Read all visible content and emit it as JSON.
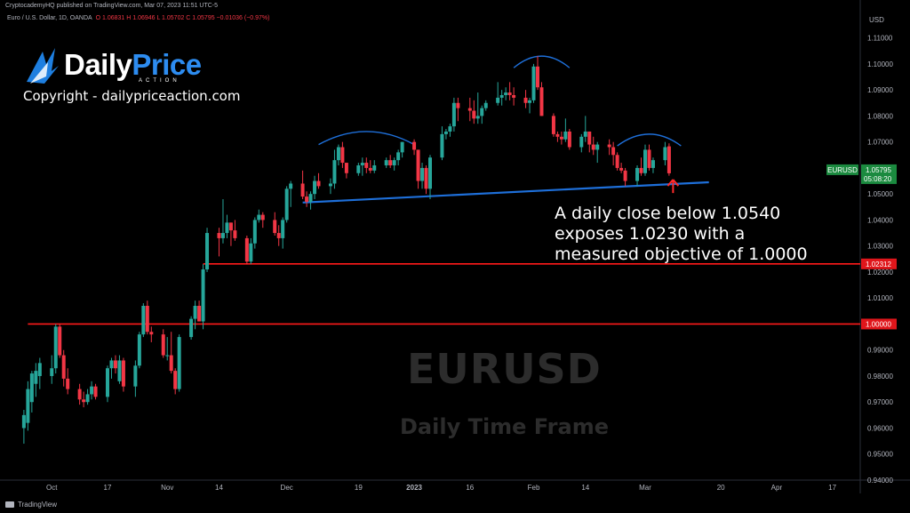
{
  "header": {
    "published": "CryptocademyHQ published on TradingView.com, Mar 07, 2023 11:51 UTC-5",
    "symbol_line": "Euro / U.S. Dollar, 1D, OANDA",
    "ohlc": "O 1.06831  H 1.06946  L 1.05702  C 1.05795  −0.01036 (−0.97%)"
  },
  "logo": {
    "part1": "Daily",
    "part2": "Price",
    "sub": "ACTION"
  },
  "copyright": "Copyright - dailypriceaction.com",
  "annotation": [
    "A daily close below 1.0540",
    "exposes 1.0230 with a",
    "measured objective of 1.0000"
  ],
  "watermark": {
    "symbol": "EURUSD",
    "timeframe": "Daily Time Frame"
  },
  "footer": "TradingView",
  "colors": {
    "up": "#26a69a",
    "down": "#f23645",
    "level": "#ff1a1a",
    "trendline": "#1e6fd9",
    "arc": "#1e6fd9",
    "marker": "#ff2a2a"
  },
  "chart_data": {
    "type": "candlestick",
    "currency": "USD",
    "ylim": [
      0.94,
      1.115
    ],
    "y_ticks": [
      "1.11000",
      "1.10000",
      "1.09000",
      "1.08000",
      "1.07000",
      "1.06000",
      "1.05000",
      "1.04000",
      "1.03000",
      "1.02000",
      "1.01000",
      "1.00000",
      "0.99000",
      "0.98000",
      "0.97000",
      "0.96000",
      "0.95000",
      "0.94000"
    ],
    "x_ticks": [
      {
        "label": "Oct",
        "date": "2022-10-03"
      },
      {
        "label": "17",
        "date": "2022-10-17"
      },
      {
        "label": "Nov",
        "date": "2022-11-01"
      },
      {
        "label": "14",
        "date": "2022-11-14"
      },
      {
        "label": "Dec",
        "date": "2022-12-01"
      },
      {
        "label": "19",
        "date": "2022-12-19"
      },
      {
        "label": "2023",
        "date": "2023-01-02"
      },
      {
        "label": "16",
        "date": "2023-01-16"
      },
      {
        "label": "Feb",
        "date": "2023-02-01"
      },
      {
        "label": "14",
        "date": "2023-02-14"
      },
      {
        "label": "Mar",
        "date": "2023-03-01"
      },
      {
        "label": "20",
        "date": "2023-03-20"
      },
      {
        "label": "Apr",
        "date": "2023-04-03"
      },
      {
        "label": "17",
        "date": "2023-04-17"
      }
    ],
    "price_labels": [
      {
        "name": "EURUSD",
        "value": "1.05795",
        "countdown": "05:08:20",
        "color": "#1b8a3f"
      },
      {
        "value": "1.02312",
        "color": "#e0161b"
      },
      {
        "value": "1.00000",
        "color": "#e0161b"
      }
    ],
    "horizontal_levels": [
      {
        "value": 1.02312,
        "from": "2022-11-10"
      },
      {
        "value": 1.0,
        "from": "2022-09-27"
      }
    ],
    "trendline": {
      "from": {
        "date": "2022-12-05",
        "value": 1.0467
      },
      "to": {
        "date": "2023-03-17",
        "value": 1.0545
      }
    },
    "arcs": [
      {
        "from": "2022-12-09",
        "to": "2023-01-02",
        "baseline": 1.069,
        "peak": 1.074
      },
      {
        "from": "2023-01-27",
        "to": "2023-02-10",
        "baseline": 1.0985,
        "peak": 1.103
      },
      {
        "from": "2023-02-22",
        "to": "2023-03-10",
        "baseline": 1.0685,
        "peak": 1.073
      }
    ],
    "marker": {
      "date": "2023-03-08",
      "value": 1.0555
    },
    "candles": [
      {
        "d": "2022-09-26",
        "o": 0.96,
        "h": 0.967,
        "l": 0.954,
        "c": 0.965
      },
      {
        "d": "2022-09-27",
        "o": 0.962,
        "h": 0.978,
        "l": 0.959,
        "c": 0.975
      },
      {
        "d": "2022-09-28",
        "o": 0.97,
        "h": 0.982,
        "l": 0.966,
        "c": 0.981
      },
      {
        "d": "2022-09-29",
        "o": 0.977,
        "h": 0.985,
        "l": 0.972,
        "c": 0.982
      },
      {
        "d": "2022-09-30",
        "o": 0.98,
        "h": 0.987,
        "l": 0.975,
        "c": 0.985
      },
      {
        "d": "2022-10-03",
        "o": 0.98,
        "h": 0.988,
        "l": 0.977,
        "c": 0.983
      },
      {
        "d": "2022-10-04",
        "o": 0.983,
        "h": 1.0,
        "l": 0.981,
        "c": 0.999
      },
      {
        "d": "2022-10-05",
        "o": 0.999,
        "h": 1.0,
        "l": 0.987,
        "c": 0.988
      },
      {
        "d": "2022-10-06",
        "o": 0.988,
        "h": 0.99,
        "l": 0.976,
        "c": 0.979
      },
      {
        "d": "2022-10-07",
        "o": 0.979,
        "h": 0.983,
        "l": 0.973,
        "c": 0.975
      },
      {
        "d": "2022-10-10",
        "o": 0.975,
        "h": 0.977,
        "l": 0.969,
        "c": 0.971
      },
      {
        "d": "2022-10-11",
        "o": 0.971,
        "h": 0.974,
        "l": 0.968,
        "c": 0.97
      },
      {
        "d": "2022-10-12",
        "o": 0.97,
        "h": 0.975,
        "l": 0.969,
        "c": 0.973
      },
      {
        "d": "2022-10-13",
        "o": 0.973,
        "h": 0.978,
        "l": 0.971,
        "c": 0.976
      },
      {
        "d": "2022-10-14",
        "o": 0.976,
        "h": 0.977,
        "l": 0.971,
        "c": 0.972
      },
      {
        "d": "2022-10-17",
        "o": 0.972,
        "h": 0.984,
        "l": 0.97,
        "c": 0.983
      },
      {
        "d": "2022-10-18",
        "o": 0.983,
        "h": 0.987,
        "l": 0.979,
        "c": 0.986
      },
      {
        "d": "2022-10-19",
        "o": 0.986,
        "h": 0.988,
        "l": 0.981,
        "c": 0.983
      },
      {
        "d": "2022-10-20",
        "o": 0.978,
        "h": 0.988,
        "l": 0.977,
        "c": 0.986
      },
      {
        "d": "2022-10-21",
        "o": 0.986,
        "h": 0.987,
        "l": 0.974,
        "c": 0.976
      },
      {
        "d": "2022-10-24",
        "o": 0.976,
        "h": 0.986,
        "l": 0.972,
        "c": 0.984
      },
      {
        "d": "2022-10-25",
        "o": 0.984,
        "h": 0.997,
        "l": 0.983,
        "c": 0.996
      },
      {
        "d": "2022-10-26",
        "o": 0.996,
        "h": 1.008,
        "l": 0.995,
        "c": 1.007
      },
      {
        "d": "2022-10-27",
        "o": 1.007,
        "h": 1.009,
        "l": 0.996,
        "c": 0.997
      },
      {
        "d": "2022-10-28",
        "o": 0.997,
        "h": 0.999,
        "l": 0.993,
        "c": 0.996
      },
      {
        "d": "2022-10-31",
        "o": 0.996,
        "h": 0.998,
        "l": 0.987,
        "c": 0.988
      },
      {
        "d": "2022-11-01",
        "o": 0.988,
        "h": 0.995,
        "l": 0.986,
        "c": 0.988
      },
      {
        "d": "2022-11-02",
        "o": 0.988,
        "h": 0.997,
        "l": 0.981,
        "c": 0.982
      },
      {
        "d": "2022-11-03",
        "o": 0.982,
        "h": 0.983,
        "l": 0.973,
        "c": 0.975
      },
      {
        "d": "2022-11-04",
        "o": 0.975,
        "h": 0.996,
        "l": 0.974,
        "c": 0.995
      },
      {
        "d": "2022-11-07",
        "o": 0.995,
        "h": 1.003,
        "l": 0.994,
        "c": 1.002
      },
      {
        "d": "2022-11-08",
        "o": 1.002,
        "h": 1.009,
        "l": 0.998,
        "c": 1.007
      },
      {
        "d": "2022-11-09",
        "o": 1.007,
        "h": 1.009,
        "l": 1.001,
        "c": 1.001
      },
      {
        "d": "2022-11-10",
        "o": 1.001,
        "h": 1.023,
        "l": 0.998,
        "c": 1.021
      },
      {
        "d": "2022-11-11",
        "o": 1.021,
        "h": 1.037,
        "l": 1.02,
        "c": 1.035
      },
      {
        "d": "2022-11-14",
        "o": 1.035,
        "h": 1.037,
        "l": 1.026,
        "c": 1.033
      },
      {
        "d": "2022-11-15",
        "o": 1.033,
        "h": 1.048,
        "l": 1.031,
        "c": 1.035
      },
      {
        "d": "2022-11-16",
        "o": 1.035,
        "h": 1.042,
        "l": 1.033,
        "c": 1.039
      },
      {
        "d": "2022-11-17",
        "o": 1.039,
        "h": 1.039,
        "l": 1.03,
        "c": 1.036
      },
      {
        "d": "2022-11-18",
        "o": 1.036,
        "h": 1.04,
        "l": 1.032,
        "c": 1.033
      },
      {
        "d": "2022-11-21",
        "o": 1.033,
        "h": 1.034,
        "l": 1.023,
        "c": 1.024
      },
      {
        "d": "2022-11-22",
        "o": 1.024,
        "h": 1.033,
        "l": 1.023,
        "c": 1.031
      },
      {
        "d": "2022-11-23",
        "o": 1.031,
        "h": 1.041,
        "l": 1.029,
        "c": 1.04
      },
      {
        "d": "2022-11-24",
        "o": 1.04,
        "h": 1.044,
        "l": 1.039,
        "c": 1.042
      },
      {
        "d": "2022-11-25",
        "o": 1.042,
        "h": 1.043,
        "l": 1.037,
        "c": 1.04
      },
      {
        "d": "2022-11-28",
        "o": 1.04,
        "h": 1.043,
        "l": 1.034,
        "c": 1.035
      },
      {
        "d": "2022-11-29",
        "o": 1.035,
        "h": 1.038,
        "l": 1.03,
        "c": 1.033
      },
      {
        "d": "2022-11-30",
        "o": 1.033,
        "h": 1.041,
        "l": 1.029,
        "c": 1.04
      },
      {
        "d": "2022-12-01",
        "o": 1.04,
        "h": 1.053,
        "l": 1.039,
        "c": 1.052
      },
      {
        "d": "2022-12-02",
        "o": 1.052,
        "h": 1.055,
        "l": 1.045,
        "c": 1.054
      },
      {
        "d": "2022-12-05",
        "o": 1.054,
        "h": 1.059,
        "l": 1.048,
        "c": 1.049
      },
      {
        "d": "2022-12-06",
        "o": 1.049,
        "h": 1.051,
        "l": 1.045,
        "c": 1.047
      },
      {
        "d": "2022-12-07",
        "o": 1.047,
        "h": 1.051,
        "l": 1.044,
        "c": 1.05
      },
      {
        "d": "2022-12-08",
        "o": 1.05,
        "h": 1.057,
        "l": 1.048,
        "c": 1.055
      },
      {
        "d": "2022-12-09",
        "o": 1.055,
        "h": 1.058,
        "l": 1.052,
        "c": 1.053
      },
      {
        "d": "2022-12-12",
        "o": 1.053,
        "h": 1.056,
        "l": 1.05,
        "c": 1.054
      },
      {
        "d": "2022-12-13",
        "o": 1.054,
        "h": 1.067,
        "l": 1.052,
        "c": 1.063
      },
      {
        "d": "2022-12-14",
        "o": 1.063,
        "h": 1.069,
        "l": 1.061,
        "c": 1.068
      },
      {
        "d": "2022-12-15",
        "o": 1.068,
        "h": 1.07,
        "l": 1.06,
        "c": 1.062
      },
      {
        "d": "2022-12-16",
        "o": 1.062,
        "h": 1.062,
        "l": 1.056,
        "c": 1.058
      },
      {
        "d": "2022-12-19",
        "o": 1.058,
        "h": 1.062,
        "l": 1.057,
        "c": 1.061
      },
      {
        "d": "2022-12-20",
        "o": 1.061,
        "h": 1.064,
        "l": 1.057,
        "c": 1.062
      },
      {
        "d": "2022-12-21",
        "o": 1.062,
        "h": 1.064,
        "l": 1.058,
        "c": 1.06
      },
      {
        "d": "2022-12-22",
        "o": 1.06,
        "h": 1.063,
        "l": 1.058,
        "c": 1.059
      },
      {
        "d": "2022-12-23",
        "o": 1.059,
        "h": 1.063,
        "l": 1.058,
        "c": 1.061
      },
      {
        "d": "2022-12-26",
        "o": 1.061,
        "h": 1.064,
        "l": 1.06,
        "c": 1.063
      },
      {
        "d": "2022-12-27",
        "o": 1.063,
        "h": 1.065,
        "l": 1.06,
        "c": 1.061
      },
      {
        "d": "2022-12-28",
        "o": 1.061,
        "h": 1.064,
        "l": 1.059,
        "c": 1.063
      },
      {
        "d": "2022-12-29",
        "o": 1.063,
        "h": 1.067,
        "l": 1.061,
        "c": 1.066
      },
      {
        "d": "2022-12-30",
        "o": 1.066,
        "h": 1.07,
        "l": 1.064,
        "c": 1.07
      },
      {
        "d": "2023-01-02",
        "o": 1.07,
        "h": 1.071,
        "l": 1.065,
        "c": 1.067
      },
      {
        "d": "2023-01-03",
        "o": 1.067,
        "h": 1.067,
        "l": 1.052,
        "c": 1.055
      },
      {
        "d": "2023-01-04",
        "o": 1.055,
        "h": 1.062,
        "l": 1.052,
        "c": 1.06
      },
      {
        "d": "2023-01-05",
        "o": 1.06,
        "h": 1.061,
        "l": 1.05,
        "c": 1.052
      },
      {
        "d": "2023-01-06",
        "o": 1.052,
        "h": 1.065,
        "l": 1.048,
        "c": 1.064
      },
      {
        "d": "2023-01-09",
        "o": 1.064,
        "h": 1.076,
        "l": 1.063,
        "c": 1.073
      },
      {
        "d": "2023-01-10",
        "o": 1.073,
        "h": 1.075,
        "l": 1.071,
        "c": 1.074
      },
      {
        "d": "2023-01-11",
        "o": 1.074,
        "h": 1.077,
        "l": 1.072,
        "c": 1.076
      },
      {
        "d": "2023-01-12",
        "o": 1.076,
        "h": 1.087,
        "l": 1.074,
        "c": 1.085
      },
      {
        "d": "2023-01-13",
        "o": 1.085,
        "h": 1.087,
        "l": 1.078,
        "c": 1.083
      },
      {
        "d": "2023-01-16",
        "o": 1.083,
        "h": 1.087,
        "l": 1.078,
        "c": 1.082
      },
      {
        "d": "2023-01-17",
        "o": 1.082,
        "h": 1.086,
        "l": 1.077,
        "c": 1.079
      },
      {
        "d": "2023-01-18",
        "o": 1.079,
        "h": 1.089,
        "l": 1.077,
        "c": 1.08
      },
      {
        "d": "2023-01-19",
        "o": 1.08,
        "h": 1.084,
        "l": 1.077,
        "c": 1.083
      },
      {
        "d": "2023-01-20",
        "o": 1.083,
        "h": 1.086,
        "l": 1.082,
        "c": 1.085
      },
      {
        "d": "2023-01-23",
        "o": 1.085,
        "h": 1.093,
        "l": 1.084,
        "c": 1.087
      },
      {
        "d": "2023-01-24",
        "o": 1.087,
        "h": 1.09,
        "l": 1.084,
        "c": 1.088
      },
      {
        "d": "2023-01-25",
        "o": 1.088,
        "h": 1.091,
        "l": 1.086,
        "c": 1.089
      },
      {
        "d": "2023-01-26",
        "o": 1.089,
        "h": 1.093,
        "l": 1.086,
        "c": 1.088
      },
      {
        "d": "2023-01-27",
        "o": 1.088,
        "h": 1.091,
        "l": 1.084,
        "c": 1.087
      },
      {
        "d": "2023-01-30",
        "o": 1.087,
        "h": 1.09,
        "l": 1.083,
        "c": 1.085
      },
      {
        "d": "2023-01-31",
        "o": 1.085,
        "h": 1.087,
        "l": 1.081,
        "c": 1.086
      },
      {
        "d": "2023-02-01",
        "o": 1.086,
        "h": 1.1,
        "l": 1.085,
        "c": 1.099
      },
      {
        "d": "2023-02-02",
        "o": 1.099,
        "h": 1.103,
        "l": 1.09,
        "c": 1.091
      },
      {
        "d": "2023-02-03",
        "o": 1.091,
        "h": 1.093,
        "l": 1.08,
        "c": 1.08
      },
      {
        "d": "2023-02-06",
        "o": 1.08,
        "h": 1.081,
        "l": 1.072,
        "c": 1.073
      },
      {
        "d": "2023-02-07",
        "o": 1.073,
        "h": 1.074,
        "l": 1.07,
        "c": 1.072
      },
      {
        "d": "2023-02-08",
        "o": 1.072,
        "h": 1.074,
        "l": 1.069,
        "c": 1.071
      },
      {
        "d": "2023-02-09",
        "o": 1.071,
        "h": 1.079,
        "l": 1.07,
        "c": 1.074
      },
      {
        "d": "2023-02-10",
        "o": 1.074,
        "h": 1.075,
        "l": 1.067,
        "c": 1.068
      },
      {
        "d": "2023-02-13",
        "o": 1.068,
        "h": 1.073,
        "l": 1.066,
        "c": 1.072
      },
      {
        "d": "2023-02-14",
        "o": 1.072,
        "h": 1.08,
        "l": 1.07,
        "c": 1.074
      },
      {
        "d": "2023-02-15",
        "o": 1.074,
        "h": 1.074,
        "l": 1.066,
        "c": 1.069
      },
      {
        "d": "2023-02-16",
        "o": 1.069,
        "h": 1.072,
        "l": 1.065,
        "c": 1.067
      },
      {
        "d": "2023-02-17",
        "o": 1.067,
        "h": 1.07,
        "l": 1.062,
        "c": 1.069
      },
      {
        "d": "2023-02-20",
        "o": 1.069,
        "h": 1.071,
        "l": 1.065,
        "c": 1.068
      },
      {
        "d": "2023-02-21",
        "o": 1.068,
        "h": 1.07,
        "l": 1.061,
        "c": 1.065
      },
      {
        "d": "2023-02-22",
        "o": 1.065,
        "h": 1.066,
        "l": 1.059,
        "c": 1.06
      },
      {
        "d": "2023-02-23",
        "o": 1.06,
        "h": 1.062,
        "l": 1.058,
        "c": 1.059
      },
      {
        "d": "2023-02-24",
        "o": 1.059,
        "h": 1.06,
        "l": 1.053,
        "c": 1.055
      },
      {
        "d": "2023-02-27",
        "o": 1.055,
        "h": 1.061,
        "l": 1.053,
        "c": 1.06
      },
      {
        "d": "2023-02-28",
        "o": 1.06,
        "h": 1.064,
        "l": 1.057,
        "c": 1.058
      },
      {
        "d": "2023-03-01",
        "o": 1.058,
        "h": 1.069,
        "l": 1.057,
        "c": 1.067
      },
      {
        "d": "2023-03-02",
        "o": 1.067,
        "h": 1.069,
        "l": 1.059,
        "c": 1.06
      },
      {
        "d": "2023-03-03",
        "o": 1.06,
        "h": 1.064,
        "l": 1.058,
        "c": 1.063
      },
      {
        "d": "2023-03-06",
        "o": 1.063,
        "h": 1.07,
        "l": 1.061,
        "c": 1.068
      },
      {
        "d": "2023-03-07",
        "o": 1.06831,
        "h": 1.06946,
        "l": 1.05702,
        "c": 1.05795
      }
    ]
  }
}
